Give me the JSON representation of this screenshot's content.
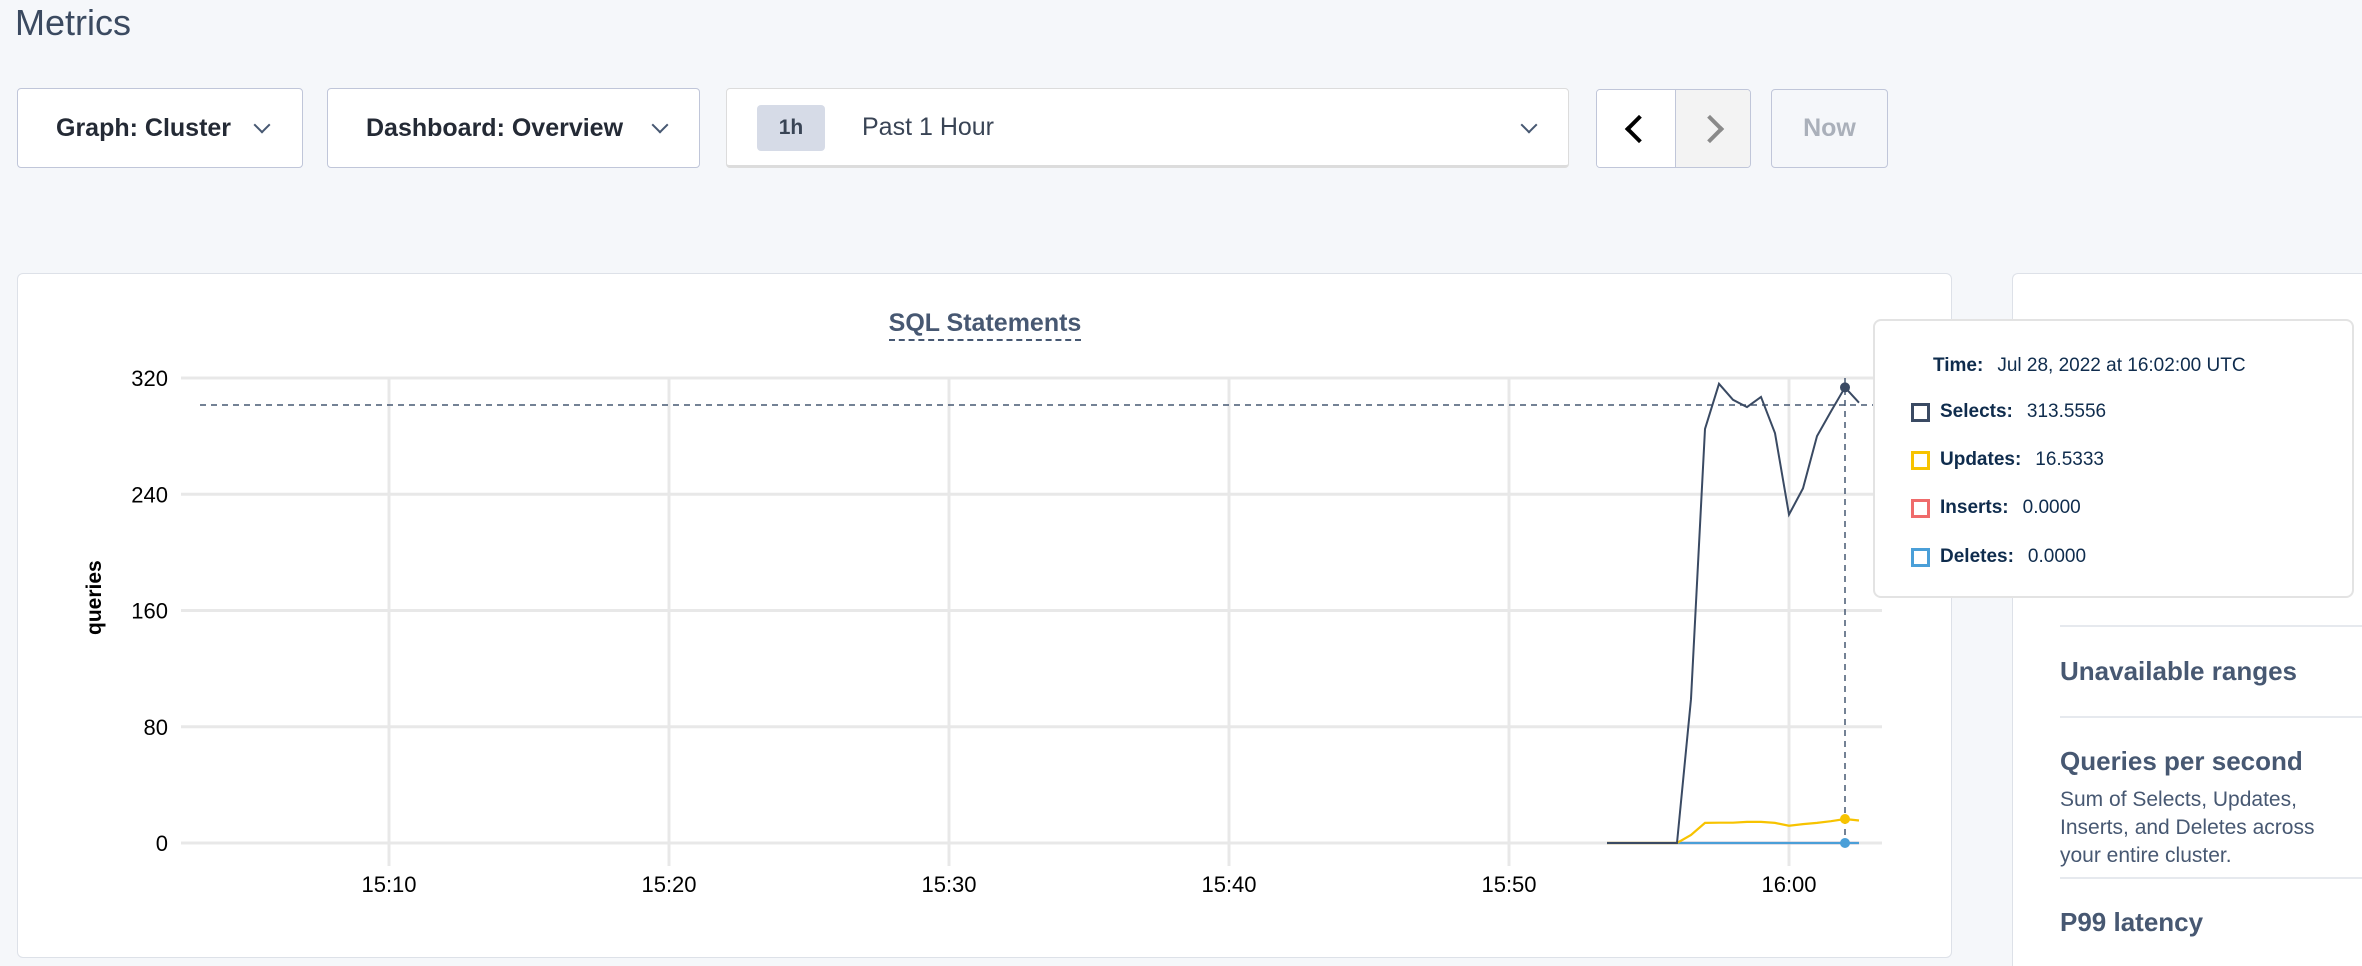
{
  "page": {
    "title": "Metrics"
  },
  "controls": {
    "graph_select": "Graph: Cluster",
    "dashboard_select": "Dashboard: Overview",
    "time_badge": "1h",
    "time_range": "Past 1 Hour",
    "now_label": "Now"
  },
  "chart_data": {
    "type": "line",
    "title": "SQL Statements",
    "ylabel": "queries",
    "xlabel": "",
    "ylim": [
      0,
      320
    ],
    "yticks": [
      "0",
      "80",
      "160",
      "240",
      "320"
    ],
    "xticks": [
      "15:10",
      "15:20",
      "15:30",
      "15:40",
      "15:50",
      "16:00"
    ],
    "grid": true,
    "x": [
      "15:53:30",
      "15:54:00",
      "15:54:30",
      "15:55:00",
      "15:55:30",
      "15:56:00",
      "15:56:30",
      "15:57:00",
      "15:57:30",
      "15:58:00",
      "15:58:30",
      "15:59:00",
      "15:59:30",
      "16:00:00",
      "16:00:30",
      "16:01:00",
      "16:01:30",
      "16:02:00",
      "16:02:30"
    ],
    "series": [
      {
        "name": "Selects",
        "color": "#3a4a63",
        "values": [
          0,
          0,
          0,
          0,
          0,
          0,
          99,
          285,
          316,
          305,
          300,
          307,
          282,
          226,
          244,
          280,
          297,
          313.5556,
          303
        ]
      },
      {
        "name": "Updates",
        "color": "#f7c300",
        "values": [
          0,
          0,
          0,
          0,
          0,
          0,
          5.5,
          13.8,
          14,
          14,
          14.5,
          14.5,
          13.8,
          11.9,
          13,
          13.8,
          15,
          16.5333,
          15.5
        ]
      },
      {
        "name": "Inserts",
        "color": "#ef6b6b",
        "values": [
          0,
          0,
          0,
          0,
          0,
          0,
          0,
          0,
          0,
          0,
          0,
          0,
          0,
          0,
          0,
          0,
          0,
          0,
          0
        ]
      },
      {
        "name": "Deletes",
        "color": "#4a9fd8",
        "values": [
          0,
          0,
          0,
          0,
          0,
          0,
          0,
          0,
          0,
          0,
          0,
          0,
          0,
          0,
          0,
          0,
          0,
          0,
          0
        ]
      }
    ],
    "hover_index": 17
  },
  "tooltip": {
    "time_label": "Time:",
    "time_value": "Jul 28, 2022 at 16:02:00 UTC",
    "rows": [
      {
        "label": "Selects:",
        "value": "313.5556",
        "color": "#3a4a63"
      },
      {
        "label": "Updates:",
        "value": "16.5333",
        "color": "#f7c300"
      },
      {
        "label": "Inserts:",
        "value": "0.0000",
        "color": "#ef6b6b"
      },
      {
        "label": "Deletes:",
        "value": "0.0000",
        "color": "#4a9fd8"
      }
    ]
  },
  "right_panel": {
    "items": [
      {
        "title": "Unavailable ranges"
      },
      {
        "title": "Queries per second",
        "desc_lines": [
          "Sum of Selects, Updates, Inserts, and Deletes across",
          "your entire cluster."
        ]
      },
      {
        "title": "P99 latency"
      }
    ]
  }
}
